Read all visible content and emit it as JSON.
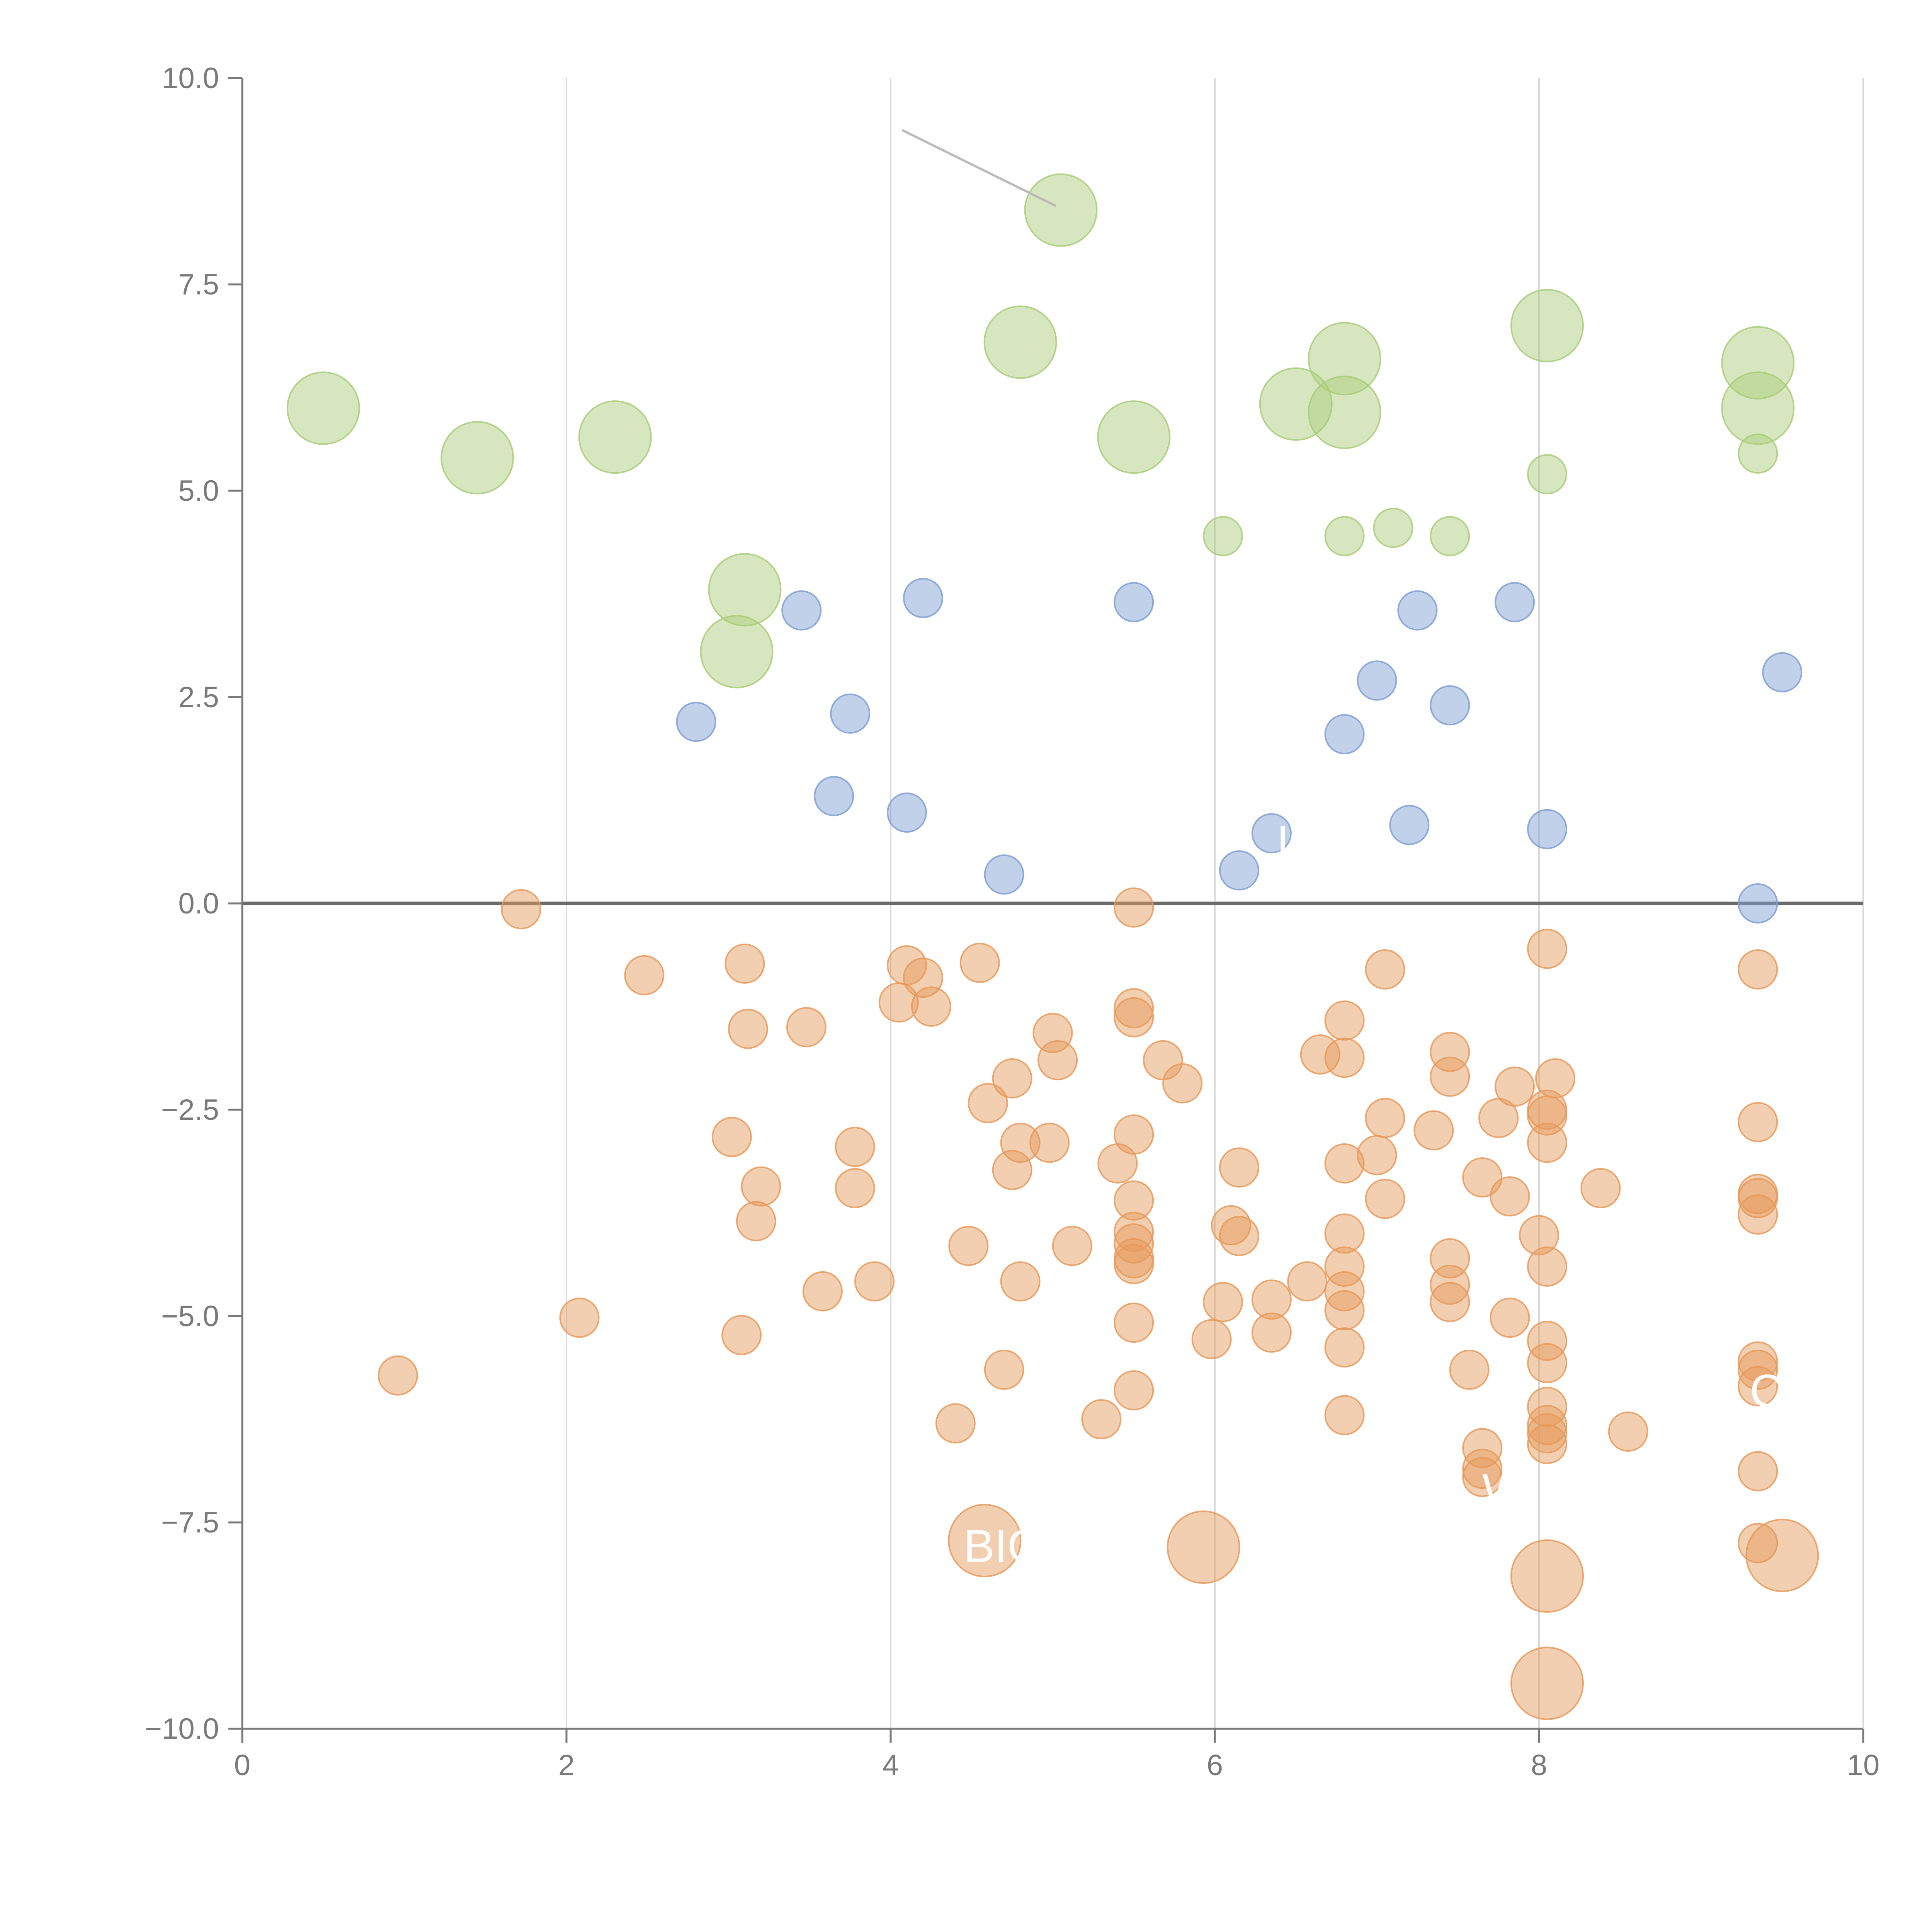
{
  "chart_data": {
    "type": "scatter",
    "title": "",
    "xlabel": "",
    "ylabel": "",
    "xlim": [
      0,
      10
    ],
    "ylim": [
      -10,
      10
    ],
    "x_ticks": [
      "0",
      "2",
      "4",
      "6",
      "8",
      "10"
    ],
    "y_ticks": [
      "10.0",
      "7.5",
      "5.0",
      "2.5",
      "0.0",
      "−2.5",
      "−5.0",
      "−7.5",
      "−10.0"
    ],
    "grid": "vertical",
    "zero_line": 0,
    "colors": {
      "green": "#a9cc7a",
      "blue": "#7f9fd3",
      "orange": "#e69a5c",
      "axis": "#7a7a7a",
      "grid": "#d9d9d9",
      "zero": "#6b6b6b"
    },
    "series": [
      {
        "name": "large-green",
        "color": "#a9cc7a",
        "size": "large",
        "points": [
          [
            0.5,
            6.0
          ],
          [
            1.45,
            5.4
          ],
          [
            2.3,
            5.65
          ],
          [
            5.05,
            8.4
          ],
          [
            4.8,
            6.8
          ],
          [
            5.5,
            5.65
          ],
          [
            6.5,
            6.05
          ],
          [
            6.8,
            6.6
          ],
          [
            6.8,
            5.95
          ],
          [
            8.05,
            7.0
          ],
          [
            9.35,
            6.55
          ],
          [
            9.35,
            6.0
          ],
          [
            3.1,
            3.8
          ],
          [
            3.05,
            3.05
          ]
        ]
      },
      {
        "name": "small-green",
        "color": "#a9cc7a",
        "size": "small",
        "points": [
          [
            8.05,
            5.2
          ],
          [
            9.35,
            5.45
          ],
          [
            6.05,
            4.45
          ],
          [
            6.8,
            4.45
          ],
          [
            7.1,
            4.55
          ],
          [
            7.45,
            4.45
          ]
        ]
      },
      {
        "name": "blue",
        "color": "#7f9fd3",
        "size": "small",
        "points": [
          [
            3.45,
            3.55
          ],
          [
            4.2,
            3.7
          ],
          [
            5.5,
            3.65
          ],
          [
            7.25,
            3.55
          ],
          [
            7.85,
            3.65
          ],
          [
            9.5,
            2.8
          ],
          [
            2.8,
            2.2
          ],
          [
            3.75,
            2.3
          ],
          [
            7.0,
            2.7
          ],
          [
            7.45,
            2.4
          ],
          [
            6.8,
            2.05
          ],
          [
            3.65,
            1.3
          ],
          [
            4.1,
            1.1
          ],
          [
            7.2,
            0.95
          ],
          [
            8.05,
            0.9
          ],
          [
            6.35,
            0.85
          ],
          [
            6.15,
            0.4
          ],
          [
            4.7,
            0.35
          ],
          [
            9.35,
            0.0
          ]
        ]
      },
      {
        "name": "orange",
        "color": "#e69a5c",
        "size": "small",
        "points": [
          [
            1.72,
            -0.07
          ],
          [
            5.5,
            -0.05
          ],
          [
            8.05,
            -0.55
          ],
          [
            9.35,
            -0.8
          ],
          [
            7.05,
            -0.8
          ],
          [
            4.55,
            -0.72
          ],
          [
            4.1,
            -0.75
          ],
          [
            4.2,
            -0.9
          ],
          [
            3.1,
            -0.73
          ],
          [
            2.48,
            -0.87
          ],
          [
            4.05,
            -1.2
          ],
          [
            4.25,
            -1.25
          ],
          [
            5.5,
            -1.27
          ],
          [
            5.5,
            -1.38
          ],
          [
            6.8,
            -1.42
          ],
          [
            3.12,
            -1.52
          ],
          [
            3.48,
            -1.5
          ],
          [
            5.0,
            -1.57
          ],
          [
            5.03,
            -1.9
          ],
          [
            6.65,
            -1.83
          ],
          [
            6.8,
            -1.87
          ],
          [
            7.45,
            -1.8
          ],
          [
            5.68,
            -1.9
          ],
          [
            5.8,
            -2.18
          ],
          [
            4.75,
            -2.12
          ],
          [
            7.45,
            -2.1
          ],
          [
            8.1,
            -2.12
          ],
          [
            7.85,
            -2.22
          ],
          [
            4.6,
            -2.42
          ],
          [
            8.05,
            -2.5
          ],
          [
            8.05,
            -2.57
          ],
          [
            7.75,
            -2.6
          ],
          [
            7.05,
            -2.6
          ],
          [
            9.35,
            -2.65
          ],
          [
            7.35,
            -2.75
          ],
          [
            5.5,
            -2.8
          ],
          [
            3.02,
            -2.83
          ],
          [
            4.8,
            -2.9
          ],
          [
            4.98,
            -2.9
          ],
          [
            3.78,
            -2.95
          ],
          [
            8.05,
            -2.9
          ],
          [
            7.0,
            -3.05
          ],
          [
            5.4,
            -3.15
          ],
          [
            6.8,
            -3.15
          ],
          [
            6.15,
            -3.2
          ],
          [
            4.75,
            -3.23
          ],
          [
            7.65,
            -3.32
          ],
          [
            8.38,
            -3.45
          ],
          [
            3.2,
            -3.43
          ],
          [
            3.78,
            -3.45
          ],
          [
            9.35,
            -3.52
          ],
          [
            9.35,
            -3.57
          ],
          [
            7.05,
            -3.58
          ],
          [
            7.82,
            -3.55
          ],
          [
            5.5,
            -3.6
          ],
          [
            9.35,
            -3.77
          ],
          [
            3.17,
            -3.85
          ],
          [
            6.1,
            -3.9
          ],
          [
            6.15,
            -4.03
          ],
          [
            6.8,
            -4.0
          ],
          [
            8.0,
            -4.02
          ],
          [
            5.5,
            -3.98
          ],
          [
            5.5,
            -4.12
          ],
          [
            4.48,
            -4.15
          ],
          [
            5.12,
            -4.15
          ],
          [
            7.45,
            -4.3
          ],
          [
            5.5,
            -4.3
          ],
          [
            5.5,
            -4.37
          ],
          [
            6.8,
            -4.4
          ],
          [
            8.05,
            -4.4
          ],
          [
            6.57,
            -4.58
          ],
          [
            3.9,
            -4.58
          ],
          [
            4.8,
            -4.58
          ],
          [
            7.45,
            -4.62
          ],
          [
            6.8,
            -4.7
          ],
          [
            3.58,
            -4.7
          ],
          [
            6.35,
            -4.8
          ],
          [
            6.05,
            -4.83
          ],
          [
            7.45,
            -4.83
          ],
          [
            6.8,
            -4.93
          ],
          [
            2.08,
            -5.02
          ],
          [
            7.82,
            -5.02
          ],
          [
            5.5,
            -5.08
          ],
          [
            6.35,
            -5.2
          ],
          [
            3.08,
            -5.23
          ],
          [
            5.98,
            -5.28
          ],
          [
            8.05,
            -5.3
          ],
          [
            6.8,
            -5.38
          ],
          [
            9.35,
            -5.55
          ],
          [
            8.05,
            -5.57
          ],
          [
            9.35,
            -5.65
          ],
          [
            4.7,
            -5.65
          ],
          [
            7.57,
            -5.65
          ],
          [
            0.96,
            -5.72
          ],
          [
            9.35,
            -5.85
          ],
          [
            5.5,
            -5.9
          ],
          [
            8.05,
            -6.1
          ],
          [
            6.8,
            -6.2
          ],
          [
            5.3,
            -6.25
          ],
          [
            4.4,
            -6.3
          ],
          [
            8.05,
            -6.32
          ],
          [
            8.05,
            -6.42
          ],
          [
            8.55,
            -6.4
          ],
          [
            8.05,
            -6.55
          ],
          [
            7.65,
            -6.6
          ],
          [
            7.65,
            -6.85
          ],
          [
            9.35,
            -6.88
          ],
          [
            7.65,
            -6.95
          ],
          [
            9.35,
            -7.75
          ]
        ]
      },
      {
        "name": "large-orange",
        "color": "#e69a5c",
        "size": "large",
        "points": [
          [
            4.58,
            -7.72
          ],
          [
            5.93,
            -7.8
          ],
          [
            8.05,
            -8.15
          ],
          [
            9.5,
            -7.9
          ],
          [
            8.05,
            -9.45
          ]
        ]
      }
    ],
    "annotation_lines": [
      {
        "from": [
          4.07,
          9.37
        ],
        "to": [
          5.02,
          8.45
        ],
        "color": "#bbbbbb"
      }
    ],
    "annotations": [
      {
        "text": "BIO",
        "x": 4.45,
        "y": -7.98
      },
      {
        "text": "W",
        "x": 7.65,
        "y": -7.3
      },
      {
        "text": "C",
        "x": 9.3,
        "y": -6.1
      },
      {
        "text": "I",
        "x": 6.38,
        "y": 0.55
      }
    ]
  }
}
